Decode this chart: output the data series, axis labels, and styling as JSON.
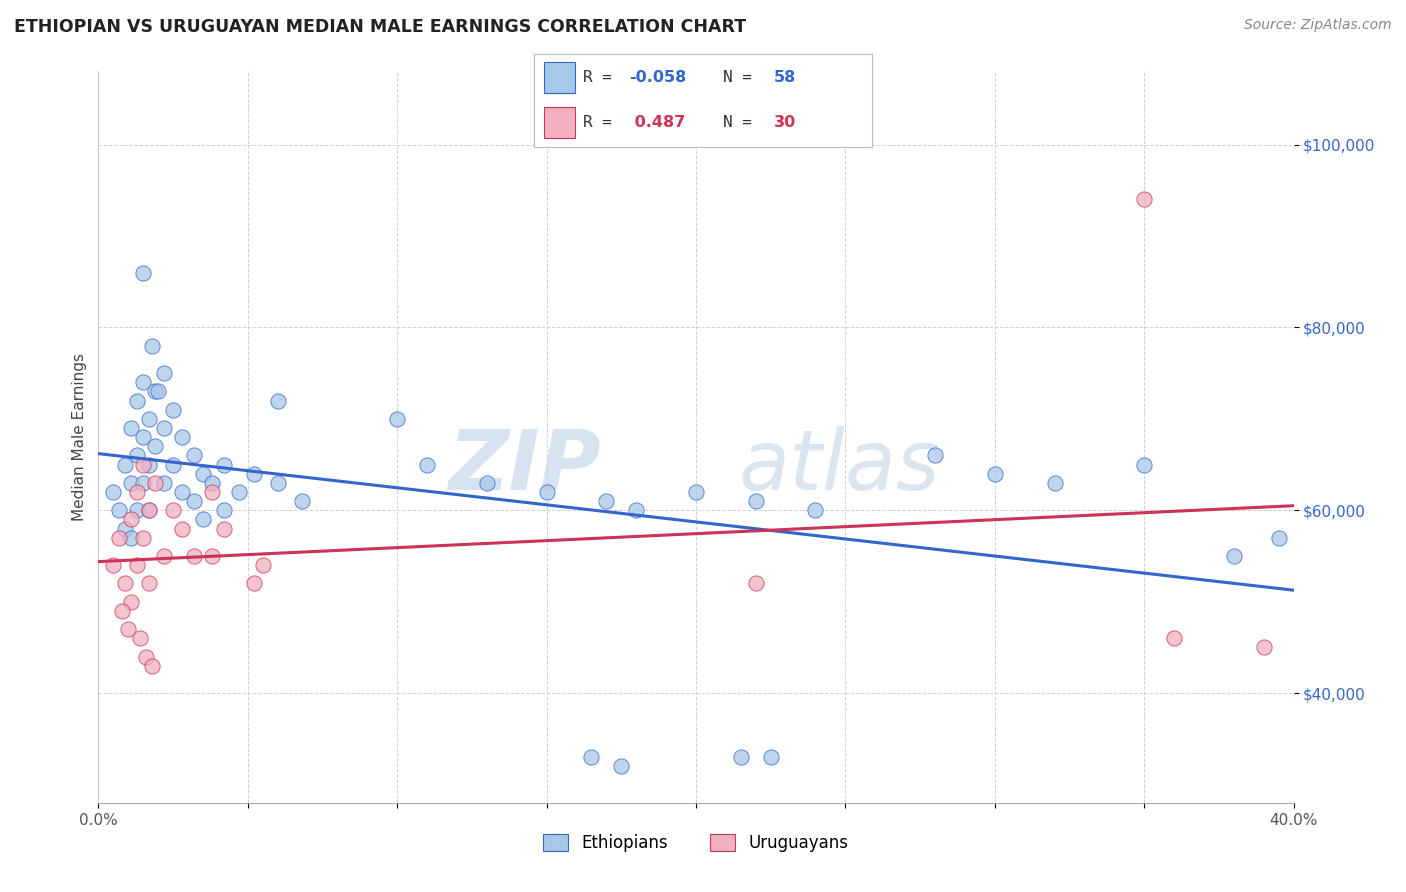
{
  "title": "ETHIOPIAN VS URUGUAYAN MEDIAN MALE EARNINGS CORRELATION CHART",
  "source": "Source: ZipAtlas.com",
  "ylabel": "Median Male Earnings",
  "x_min": 0.0,
  "x_max": 0.4,
  "y_min": 28000,
  "y_max": 108000,
  "x_ticks": [
    0.0,
    0.05,
    0.1,
    0.15,
    0.2,
    0.25,
    0.3,
    0.35,
    0.4
  ],
  "x_tick_labels": [
    "0.0%",
    "",
    "",
    "",
    "",
    "",
    "",
    "",
    "40.0%"
  ],
  "y_ticks": [
    40000,
    60000,
    80000,
    100000
  ],
  "y_tick_labels": [
    "$40,000",
    "$60,000",
    "$80,000",
    "$100,000"
  ],
  "blue_color": "#a8c8e8",
  "pink_color": "#f0b0c0",
  "blue_line_color": "#3366cc",
  "pink_line_color": "#cc3355",
  "blue_scatter": [
    [
      0.005,
      62000
    ],
    [
      0.007,
      60000
    ],
    [
      0.009,
      65000
    ],
    [
      0.009,
      58000
    ],
    [
      0.011,
      69000
    ],
    [
      0.011,
      63000
    ],
    [
      0.011,
      57000
    ],
    [
      0.013,
      72000
    ],
    [
      0.013,
      66000
    ],
    [
      0.013,
      60000
    ],
    [
      0.015,
      74000
    ],
    [
      0.015,
      68000
    ],
    [
      0.015,
      63000
    ],
    [
      0.017,
      70000
    ],
    [
      0.017,
      65000
    ],
    [
      0.017,
      60000
    ],
    [
      0.019,
      73000
    ],
    [
      0.019,
      67000
    ],
    [
      0.022,
      75000
    ],
    [
      0.022,
      69000
    ],
    [
      0.022,
      63000
    ],
    [
      0.025,
      71000
    ],
    [
      0.025,
      65000
    ],
    [
      0.028,
      68000
    ],
    [
      0.028,
      62000
    ],
    [
      0.032,
      66000
    ],
    [
      0.032,
      61000
    ],
    [
      0.035,
      64000
    ],
    [
      0.035,
      59000
    ],
    [
      0.038,
      63000
    ],
    [
      0.042,
      65000
    ],
    [
      0.042,
      60000
    ],
    [
      0.047,
      62000
    ],
    [
      0.052,
      64000
    ],
    [
      0.06,
      63000
    ],
    [
      0.068,
      61000
    ],
    [
      0.015,
      86000
    ],
    [
      0.018,
      78000
    ],
    [
      0.02,
      73000
    ],
    [
      0.06,
      72000
    ],
    [
      0.1,
      70000
    ],
    [
      0.11,
      65000
    ],
    [
      0.13,
      63000
    ],
    [
      0.15,
      62000
    ],
    [
      0.17,
      61000
    ],
    [
      0.18,
      60000
    ],
    [
      0.2,
      62000
    ],
    [
      0.22,
      61000
    ],
    [
      0.24,
      60000
    ],
    [
      0.28,
      66000
    ],
    [
      0.3,
      64000
    ],
    [
      0.32,
      63000
    ],
    [
      0.35,
      65000
    ],
    [
      0.165,
      33000
    ],
    [
      0.175,
      32000
    ],
    [
      0.215,
      33000
    ],
    [
      0.225,
      33000
    ],
    [
      0.38,
      55000
    ],
    [
      0.395,
      57000
    ]
  ],
  "pink_scatter": [
    [
      0.005,
      54000
    ],
    [
      0.007,
      57000
    ],
    [
      0.009,
      52000
    ],
    [
      0.011,
      59000
    ],
    [
      0.011,
      50000
    ],
    [
      0.013,
      62000
    ],
    [
      0.013,
      54000
    ],
    [
      0.015,
      65000
    ],
    [
      0.015,
      57000
    ],
    [
      0.017,
      60000
    ],
    [
      0.017,
      52000
    ],
    [
      0.019,
      63000
    ],
    [
      0.022,
      55000
    ],
    [
      0.025,
      60000
    ],
    [
      0.028,
      58000
    ],
    [
      0.032,
      55000
    ],
    [
      0.038,
      62000
    ],
    [
      0.038,
      55000
    ],
    [
      0.042,
      58000
    ],
    [
      0.008,
      49000
    ],
    [
      0.01,
      47000
    ],
    [
      0.014,
      46000
    ],
    [
      0.016,
      44000
    ],
    [
      0.018,
      43000
    ],
    [
      0.052,
      52000
    ],
    [
      0.055,
      54000
    ],
    [
      0.22,
      52000
    ],
    [
      0.35,
      94000
    ],
    [
      0.36,
      46000
    ],
    [
      0.39,
      45000
    ]
  ],
  "watermark_zip_color": "#d0d8e8",
  "watermark_atlas_color": "#c8d4e4"
}
